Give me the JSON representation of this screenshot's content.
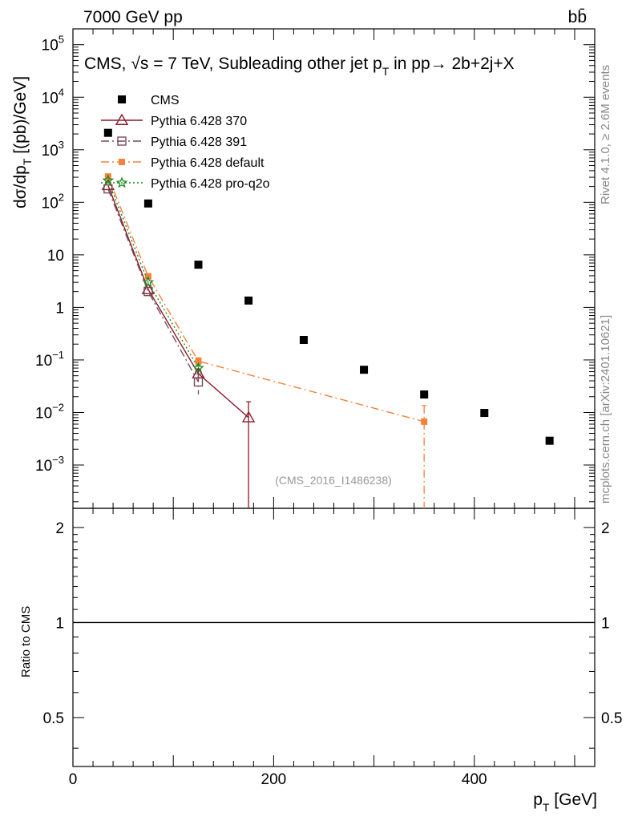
{
  "header": {
    "left": "7000 GeV pp",
    "right": "bb̄"
  },
  "side_labels": {
    "rivet": "Rivet 4.1.0, ≥ 2.6M events",
    "mcplots": "mcplots.cern.ch [arXiv:2401.10621]"
  },
  "watermark": "(CMS_2016_I1486238)",
  "chart_data": {
    "type": "scatter",
    "title": "CMS, √s = 7 TeV, Subleading other jet p_T in pp→ 2b+2j+X",
    "title_parts": {
      "main": "CMS, √s = 7 TeV, Subleading other jet p",
      "sub": "T",
      "tail": " in pp→  2b+2j+X"
    },
    "ylabel": "dσ/dp_T [(pb)/GeV]",
    "ylabel_parts": {
      "main": "dσ/dp",
      "sub": "T",
      "tail": " [(pb)/GeV]"
    },
    "xlabel": "p_T [GeV]",
    "xlabel_parts": {
      "main": "p",
      "sub": "T",
      "tail": " [GeV]"
    },
    "ratio_ylabel": "Ratio to CMS",
    "xlim": [
      0,
      520
    ],
    "ylim": [
      0.00015,
      200000
    ],
    "yscale": "log",
    "ratio_ylim": [
      0.35,
      2.3
    ],
    "x_ticks": [
      {
        "value": 0,
        "label": "0"
      },
      {
        "value": 200,
        "label": "200"
      },
      {
        "value": 400,
        "label": "400"
      }
    ],
    "y_ticks": [
      {
        "value": 0.001,
        "base": "10",
        "exp": "−3"
      },
      {
        "value": 0.01,
        "base": "10",
        "exp": "−2"
      },
      {
        "value": 0.1,
        "base": "10",
        "exp": "−1"
      },
      {
        "value": 1,
        "base": "1",
        "exp": ""
      },
      {
        "value": 10,
        "base": "10",
        "exp": ""
      },
      {
        "value": 100,
        "base": "10",
        "exp": "2"
      },
      {
        "value": 1000,
        "base": "10",
        "exp": "3"
      },
      {
        "value": 10000,
        "base": "10",
        "exp": "4"
      },
      {
        "value": 100000,
        "base": "10",
        "exp": "5"
      }
    ],
    "ratio_ticks": [
      {
        "value": 0.5,
        "label": "0.5"
      },
      {
        "value": 1,
        "label": "1"
      },
      {
        "value": 2,
        "label": "2"
      }
    ],
    "series": [
      {
        "name": "CMS",
        "color": "#000000",
        "marker": "square",
        "line": "none",
        "x": [
          35,
          75,
          125,
          175,
          230,
          290,
          350,
          410,
          475
        ],
        "values": [
          2100,
          95,
          6.5,
          1.35,
          0.24,
          0.065,
          0.022,
          0.0098,
          0.0029
        ]
      },
      {
        "name": "Pythia 6.428 370",
        "color": "#8b1a2b",
        "marker": "triangle-open",
        "line": "solid",
        "x": [
          35,
          75,
          125,
          175
        ],
        "values": [
          210,
          2.2,
          0.055,
          0.008
        ],
        "err_low": [
          0,
          0,
          0.01,
          0.00793
        ],
        "err_high": [
          0,
          0,
          0.01,
          0.008
        ]
      },
      {
        "name": "Pythia 6.428 391",
        "color": "#7a4a5a",
        "marker": "square-open",
        "line": "dashdot",
        "x": [
          35,
          75,
          125
        ],
        "values": [
          180,
          2.0,
          0.038
        ],
        "err_low": [
          0,
          0,
          0.016
        ],
        "err_high": [
          0,
          0,
          0.016
        ]
      },
      {
        "name": "Pythia 6.428 default",
        "color": "#f5823a",
        "marker": "square-filled",
        "line": "dashdot",
        "x": [
          35,
          75,
          125,
          350
        ],
        "values": [
          310,
          3.9,
          0.095,
          0.0067
        ],
        "err_low": [
          0,
          0,
          0.015,
          0.00666
        ],
        "err_high": [
          0,
          0,
          0.015,
          0.0068
        ]
      },
      {
        "name": "Pythia 6.428 pro-q2o",
        "color": "#1f8a1f",
        "marker": "star",
        "line": "dotted",
        "x": [
          35,
          75,
          125
        ],
        "values": [
          260,
          3.0,
          0.07
        ],
        "err_low": [
          0,
          0,
          0.01
        ],
        "err_high": [
          0,
          0,
          0.01
        ]
      }
    ]
  }
}
